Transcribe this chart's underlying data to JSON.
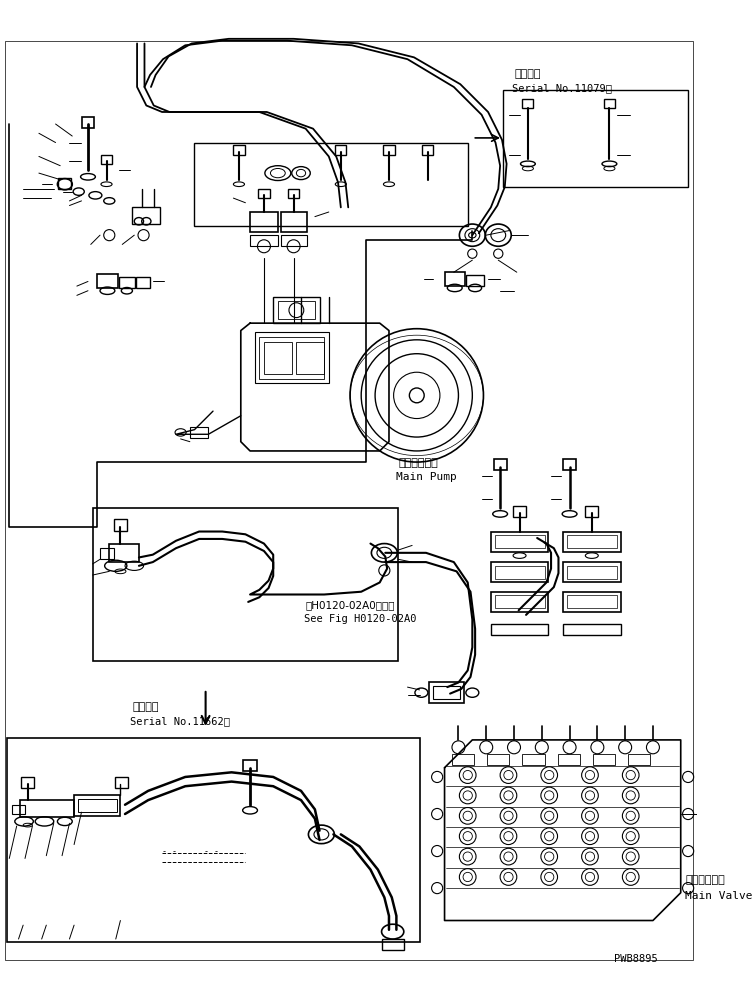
{
  "bg_color": "#ffffff",
  "line_color": "#000000",
  "fig_width": 7.53,
  "fig_height": 10.03,
  "watermark": "PWB8895",
  "top_right_label_jp": "適用号機",
  "top_right_label_en": "Serial No.11079～",
  "bottom_left_label_jp": "適用号機",
  "bottom_left_label_en": "Serial No.11662～",
  "main_pump_jp": "メインポンプ",
  "main_pump_en": "Main Pump",
  "main_valve_jp": "メインバルブ",
  "main_valve_en": "Main Valve",
  "ref_text_jp": "第H0120-02A0図参照",
  "ref_text_en": "See Fig H0120-02A0"
}
